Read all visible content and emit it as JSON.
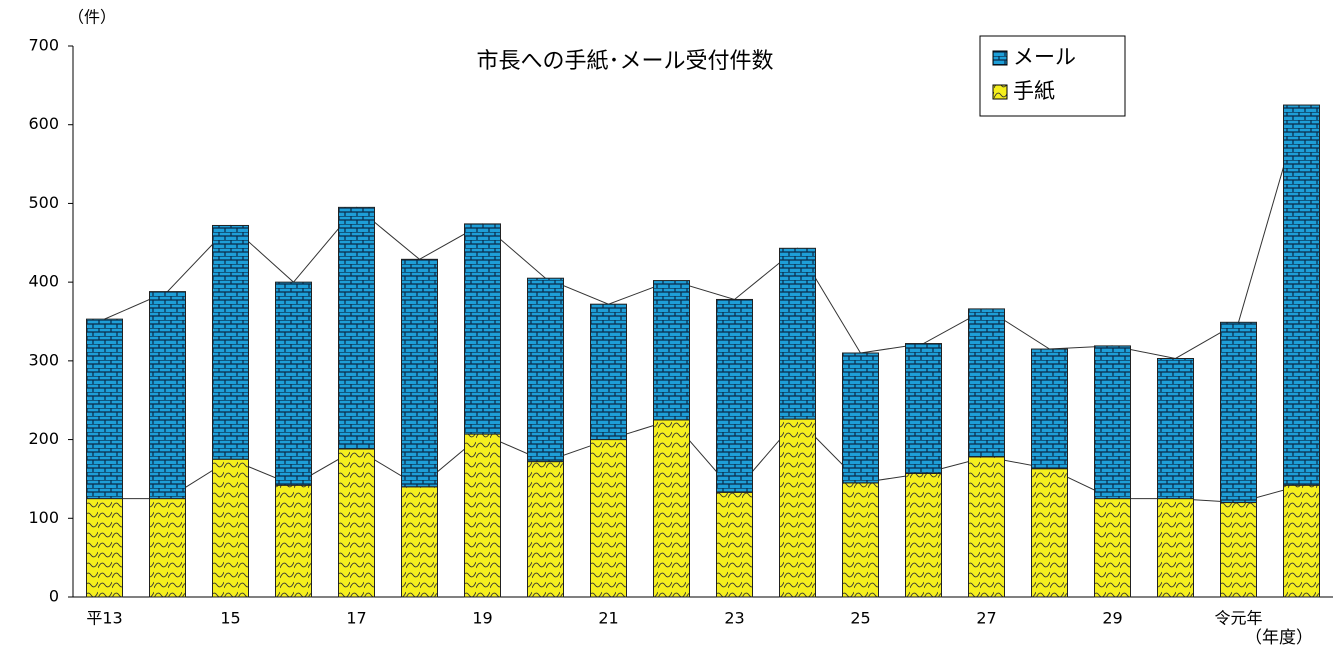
{
  "chart_data": {
    "type": "stacked-bar",
    "title": "市長への手紙･メール受付件数",
    "y_label": "（件）",
    "x_label": "（年度）",
    "categories": [
      "平13",
      null,
      "15",
      null,
      "17",
      null,
      "19",
      null,
      "21",
      null,
      "23",
      null,
      "25",
      null,
      "27",
      null,
      "29",
      null,
      "令元年",
      null
    ],
    "series": [
      {
        "name": "手紙",
        "color": "#f5ef1e",
        "values": [
          125,
          125,
          175,
          142,
          188,
          140,
          207,
          172,
          200,
          225,
          133,
          226,
          145,
          157,
          178,
          163,
          125,
          125,
          120,
          142
        ]
      },
      {
        "name": "メール",
        "color": "#1e9fd8",
        "values": [
          228,
          263,
          297,
          258,
          307,
          289,
          267,
          233,
          172,
          177,
          245,
          217,
          165,
          165,
          188,
          152,
          194,
          178,
          229,
          483
        ]
      }
    ],
    "ylim": [
      0,
      700
    ],
    "yticks": [
      0,
      100,
      200,
      300,
      400,
      500,
      600,
      700
    ],
    "legend": "top-right"
  }
}
